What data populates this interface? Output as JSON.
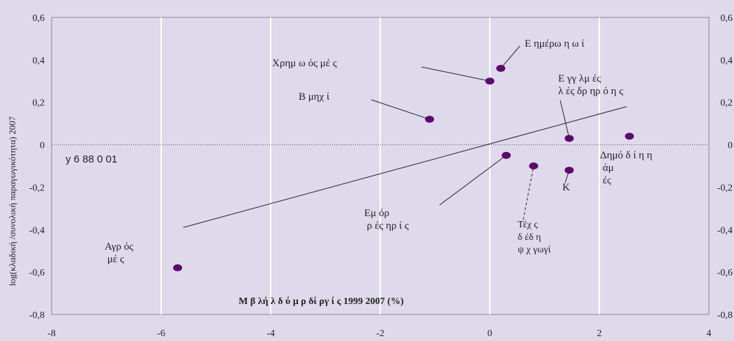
{
  "chart_data": {
    "type": "scatter",
    "title": "",
    "xlabel": "Μ β λή λ δ ύ μ ρ δί ργ ί ς 1999 2007 (%)",
    "ylabel": "log(κλαδική /συνολική παραγωγικότητα) 2007",
    "xlim": [
      -8,
      4
    ],
    "ylim": [
      -0.8,
      0.6
    ],
    "xticks": [
      "-8",
      "-6",
      "-4",
      "-2",
      "0",
      "2",
      "4"
    ],
    "yticks": [
      "-0,8",
      "-0,6",
      "-0,4",
      "-0,2",
      "0",
      "0,2",
      "0,4",
      "0,6"
    ],
    "grid": "vertical",
    "marker_color": "#5a0a6e",
    "trendline": {
      "x": [
        -5.6,
        2.5
      ],
      "y": [
        -0.39,
        0.18
      ]
    },
    "equation": "y 6 88 0 01",
    "points": [
      {
        "x": -5.7,
        "y": -0.58
      },
      {
        "x": -1.1,
        "y": 0.12
      },
      {
        "x": 0.0,
        "y": 0.3
      },
      {
        "x": 0.2,
        "y": 0.36
      },
      {
        "x": 0.3,
        "y": -0.05
      },
      {
        "x": 0.8,
        "y": -0.1
      },
      {
        "x": 1.45,
        "y": 0.03
      },
      {
        "x": 1.45,
        "y": -0.12
      },
      {
        "x": 2.55,
        "y": 0.04
      }
    ],
    "annotations": [
      {
        "text": "Αγρ ός\n μέ ς"
      },
      {
        "text": "Β μηχ ί"
      },
      {
        "text": "Χρημ ω ός μέ ς"
      },
      {
        "text": "Ε ημέρω η ω ί"
      },
      {
        "text": "Ε γγ λμ ές\nλ ές δρ ηρ ό η ς"
      },
      {
        "text": "Δημό δ ί η η\n άμ\n ές"
      },
      {
        "text": "Κ"
      },
      {
        "text": "Εμ όρ\n ρ ές ηρ ί ς"
      },
      {
        "text": "Τέχ ς\nδ έδ η\nψ χ γωγί"
      }
    ]
  }
}
